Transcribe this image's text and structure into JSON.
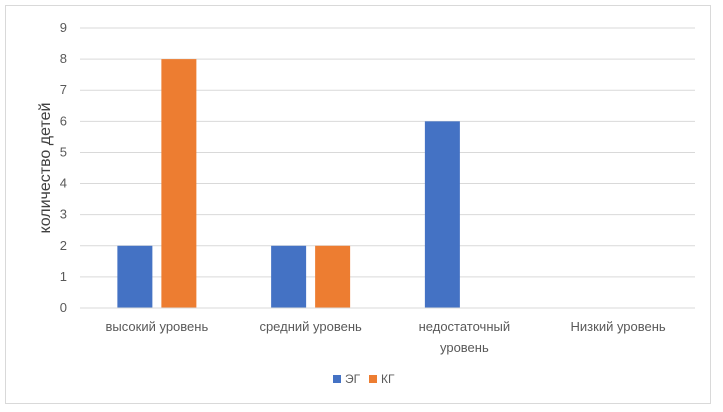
{
  "chart_data": {
    "type": "bar",
    "title": "",
    "xlabel": "",
    "ylabel": "количество детей",
    "ylim": [
      0,
      9
    ],
    "yticks": [
      0,
      1,
      2,
      3,
      4,
      5,
      6,
      7,
      8,
      9
    ],
    "grid": true,
    "legend_position": "bottom",
    "categories": [
      [
        "высокий уровень"
      ],
      [
        "средний уровень"
      ],
      [
        "недостаточный",
        "уровень"
      ],
      [
        "Низкий уровень"
      ]
    ],
    "series": [
      {
        "name": "ЭГ",
        "color": "#4472c4",
        "values": [
          2,
          2,
          6,
          0
        ]
      },
      {
        "name": "КГ",
        "color": "#ed7d31",
        "values": [
          8,
          2,
          0,
          0
        ]
      }
    ]
  }
}
